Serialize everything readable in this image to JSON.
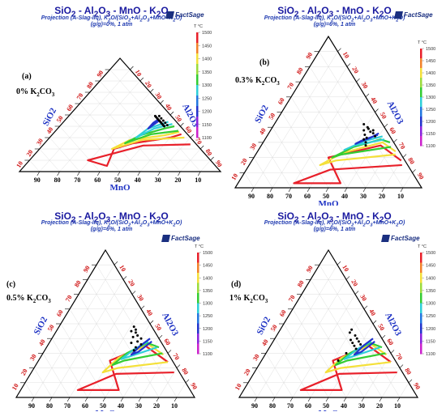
{
  "figure": {
    "panels": [
      {
        "title": "SiO2 - Al2O3 - MnO - K2O",
        "subtitle1": "Projection (A-Slag-liq), K2O/(SiO2+Al2O3+MnO+K2O)",
        "subtitle2": "(g/g)=0%, 1 atm",
        "logo": "FactSage",
        "panel_label": "(a)",
        "composition": "0% K2CO3"
      },
      {
        "title": "SiO2 - Al2O3 - MnO - K2O",
        "subtitle1": "Projection (A-Slag-liq), K2O/(SiO2+Al2O3+MnO+K2O)",
        "subtitle2": "(g/g)=6%, 1 atm",
        "logo": "FactSage",
        "panel_label": "(b)",
        "composition": "0.3% K2CO3"
      },
      {
        "title": "SiO2 - Al2O3 - MnO - K2O",
        "subtitle1": "Projection (A-Slag-liq), K2O/(SiO2+Al2O3+MnO+K2O)",
        "subtitle2": "(g/g)=6%, 1 atm",
        "logo": "FactSage",
        "panel_label": "(c)",
        "composition": "0.5% K2CO3"
      },
      {
        "title": "SiO2 - Al2O3 - MnO - K2O",
        "subtitle1": "Projection (A-Slag-liq), K2O/(SiO2+Al2O3+MnO+K2O)",
        "subtitle2": "(g/g)=6%, 1 atm",
        "logo": "FactSage",
        "panel_label": "(d)",
        "composition": "1% K2CO3"
      }
    ]
  },
  "chart_data": [
    {
      "type": "scatter",
      "diagram": "ternary",
      "axis_labels": {
        "left": "SiO2",
        "right": "Al2O3",
        "bottom": "MnO"
      },
      "ticks_bottom": [
        "90",
        "80",
        "70",
        "60",
        "50",
        "40",
        "30",
        "20",
        "10"
      ],
      "ticks_left": [
        "10",
        "20",
        "30",
        "40",
        "50",
        "60",
        "70",
        "80",
        "90"
      ],
      "ticks_right": [
        "10",
        "20",
        "30",
        "40",
        "50",
        "60",
        "70",
        "80",
        "90"
      ],
      "legend": {
        "unit": "T °C",
        "values": [
          "1500",
          "1450",
          "1400",
          "1350",
          "1300",
          "1250",
          "1200",
          "1150",
          "1100"
        ]
      },
      "isotherms": [
        {
          "T": 1500,
          "color": "#e8202a",
          "points": [
            [
              24,
              73,
              3
            ],
            [
              23,
              50,
              27
            ],
            [
              10,
              29,
              61
            ],
            [
              5,
              41,
              54
            ],
            [
              20,
              37,
              43
            ],
            [
              25,
              44,
              31
            ],
            [
              30,
              60,
              10
            ],
            [
              33,
              64,
              3
            ]
          ]
        },
        {
          "T": 1400,
          "color": "#f4e03a",
          "points": [
            [
              30,
              67,
              3
            ],
            [
              28,
              47,
              25
            ],
            [
              20,
              36,
              44
            ],
            [
              28,
              41,
              31
            ],
            [
              32,
              56,
              12
            ],
            [
              35,
              62,
              3
            ]
          ]
        },
        {
          "T": 1300,
          "color": "#33cc33",
          "points": [
            [
              36,
              61,
              3
            ],
            [
              33,
              49,
              18
            ],
            [
              25,
              40,
              35
            ],
            [
              32,
              44,
              24
            ],
            [
              38,
              53,
              9
            ],
            [
              40,
              57,
              3
            ]
          ]
        },
        {
          "T": 1200,
          "color": "#2ecfd8",
          "points": [
            [
              42,
              55,
              3
            ],
            [
              38,
              48,
              14
            ],
            [
              30,
              43,
              27
            ],
            [
              38,
              45,
              17
            ],
            [
              44,
              52,
              4
            ]
          ]
        },
        {
          "T": 1100,
          "color": "#2233cc",
          "points": [
            [
              45,
              47,
              8
            ],
            [
              38,
              45,
              17
            ],
            [
              43,
              45,
              12
            ],
            [
              46,
              46,
              8
            ]
          ]
        }
      ],
      "samples": [
        [
          40,
          52,
          8
        ],
        [
          41,
          51,
          8
        ],
        [
          42,
          50,
          8
        ],
        [
          43,
          49,
          8
        ],
        [
          44,
          48,
          8
        ],
        [
          45,
          47,
          8
        ],
        [
          46,
          46,
          8
        ],
        [
          47,
          45,
          8
        ],
        [
          48,
          44,
          8
        ],
        [
          49,
          43,
          8
        ],
        [
          41,
          53,
          6
        ],
        [
          43,
          51,
          6
        ],
        [
          45,
          49,
          6
        ],
        [
          47,
          47,
          6
        ],
        [
          49,
          45,
          6
        ]
      ]
    },
    {
      "type": "scatter",
      "diagram": "ternary",
      "axis_labels": {
        "left": "SiO2",
        "right": "Al2O3",
        "bottom": "MnO"
      },
      "ticks_bottom": [
        "90",
        "80",
        "70",
        "60",
        "50",
        "40",
        "30",
        "20",
        "10"
      ],
      "ticks_left": [
        "10",
        "20",
        "30",
        "40",
        "50",
        "60",
        "70",
        "80",
        "90"
      ],
      "ticks_right": [
        "10",
        "20",
        "30",
        "40",
        "50",
        "60",
        "70",
        "80",
        "90"
      ],
      "legend": {
        "unit": "T °C",
        "values": [
          "1500",
          "1450",
          "1400",
          "1350",
          "1300",
          "1250",
          "1200",
          "1150",
          "1100"
        ]
      },
      "isotherms": [
        {
          "T": 1500,
          "color": "#e8202a",
          "points": [
            [
              15,
              82,
              3
            ],
            [
              12,
              45,
              43
            ],
            [
              3,
              30,
              67
            ],
            [
              3,
              55,
              42
            ],
            [
              20,
              40,
              40
            ],
            [
              28,
              64,
              8
            ],
            [
              18,
              80,
              2
            ]
          ]
        },
        {
          "T": 1400,
          "color": "#f4e03a",
          "points": [
            [
              22,
              75,
              3
            ],
            [
              18,
              45,
              37
            ],
            [
              15,
              38,
              47
            ],
            [
              23,
              46,
              31
            ],
            [
              30,
              64,
              6
            ],
            [
              24,
              74,
              2
            ]
          ]
        },
        {
          "T": 1300,
          "color": "#33cc33",
          "points": [
            [
              27,
              70,
              3
            ],
            [
              22,
              46,
              32
            ],
            [
              20,
              42,
              38
            ],
            [
              27,
              50,
              23
            ],
            [
              32,
              62,
              6
            ],
            [
              30,
              68,
              2
            ]
          ]
        },
        {
          "T": 1200,
          "color": "#2ecfd8",
          "points": [
            [
              32,
              64,
              4
            ],
            [
              28,
              50,
              22
            ],
            [
              25,
              46,
              29
            ],
            [
              31,
              54,
              15
            ],
            [
              34,
              62,
              4
            ]
          ]
        },
        {
          "T": 1100,
          "color": "#2233cc",
          "points": [
            [
              35,
              59,
              6
            ],
            [
              31,
              52,
              17
            ],
            [
              29,
              50,
              21
            ],
            [
              33,
              56,
              11
            ],
            [
              36,
              59,
              5
            ]
          ]
        }
      ],
      "samples": [
        [
          36,
          56,
          8
        ],
        [
          38,
          55,
          7
        ],
        [
          37,
          54,
          9
        ],
        [
          39,
          52,
          9
        ],
        [
          40,
          51,
          9
        ],
        [
          34,
          58,
          8
        ],
        [
          30,
          55,
          15
        ],
        [
          32,
          53,
          15
        ],
        [
          33,
          54,
          13
        ],
        [
          35,
          52,
          13
        ],
        [
          28,
          56,
          16
        ],
        [
          38,
          50,
          12
        ],
        [
          42,
          48,
          10
        ]
      ]
    },
    {
      "type": "scatter",
      "diagram": "ternary",
      "axis_labels": {
        "left": "SiO2",
        "right": "Al2O3",
        "bottom": "MnO"
      },
      "ticks_bottom": [
        "90",
        "80",
        "70",
        "60",
        "50",
        "40",
        "30",
        "20",
        "10"
      ],
      "ticks_left": [
        "10",
        "20",
        "30",
        "40",
        "50",
        "60",
        "70",
        "80",
        "90"
      ],
      "ticks_right": [
        "10",
        "20",
        "30",
        "40",
        "50",
        "60",
        "70",
        "80",
        "90"
      ],
      "legend": {
        "unit": "T °C",
        "values": [
          "1500",
          "1450",
          "1400",
          "1350",
          "1300",
          "1250",
          "1200",
          "1150",
          "1100"
        ]
      },
      "isotherms": [
        {
          "T": 1500,
          "color": "#e8202a",
          "points": [
            [
              17,
              80,
              3
            ],
            [
              16,
              48,
              36
            ],
            [
              5,
              32,
              63
            ],
            [
              5,
              55,
              40
            ],
            [
              25,
              40,
              35
            ],
            [
              35,
              55,
              10
            ],
            [
              24,
              73,
              3
            ]
          ]
        },
        {
          "T": 1400,
          "color": "#f4e03a",
          "points": [
            [
              24,
              73,
              3
            ],
            [
              20,
              47,
              33
            ],
            [
              17,
              40,
              43
            ],
            [
              27,
              44,
              29
            ],
            [
              36,
              56,
              8
            ],
            [
              29,
              68,
              3
            ]
          ]
        },
        {
          "T": 1300,
          "color": "#33cc33",
          "points": [
            [
              30,
              67,
              3
            ],
            [
              25,
              48,
              27
            ],
            [
              22,
              43,
              35
            ],
            [
              30,
              47,
              23
            ],
            [
              37,
              55,
              8
            ],
            [
              34,
              63,
              3
            ]
          ]
        },
        {
          "T": 1200,
          "color": "#2ecfd8",
          "points": [
            [
              34,
              62,
              4
            ],
            [
              28,
              50,
              22
            ],
            [
              26,
              46,
              28
            ],
            [
              33,
              50,
              17
            ],
            [
              38,
              55,
              7
            ]
          ]
        },
        {
          "T": 1100,
          "color": "#2233cc",
          "points": [
            [
              38,
              57,
              5
            ],
            [
              31,
              53,
              16
            ],
            [
              29,
              50,
              21
            ],
            [
              35,
              52,
              13
            ],
            [
              40,
              55,
              5
            ]
          ]
        }
      ],
      "samples": [
        [
          40,
          50,
          10
        ],
        [
          42,
          47,
          11
        ],
        [
          38,
          49,
          13
        ],
        [
          44,
          45,
          11
        ],
        [
          46,
          44,
          10
        ],
        [
          36,
          52,
          12
        ],
        [
          34,
          50,
          16
        ],
        [
          32,
          50,
          18
        ],
        [
          41,
          45,
          14
        ],
        [
          48,
          42,
          10
        ],
        [
          37,
          46,
          17
        ],
        [
          45,
          42,
          13
        ]
      ]
    },
    {
      "type": "scatter",
      "diagram": "ternary",
      "axis_labels": {
        "left": "SiO2",
        "right": "Al2O3",
        "bottom": "MnO"
      },
      "ticks_bottom": [
        "90",
        "80",
        "70",
        "60",
        "50",
        "40",
        "30",
        "20",
        "10"
      ],
      "ticks_left": [
        "10",
        "20",
        "30",
        "40",
        "50",
        "60",
        "70",
        "80",
        "90"
      ],
      "ticks_right": [
        "10",
        "20",
        "30",
        "40",
        "50",
        "60",
        "70",
        "80",
        "90"
      ],
      "legend": {
        "unit": "T °C",
        "values": [
          "1500",
          "1450",
          "1400",
          "1350",
          "1300",
          "1250",
          "1200",
          "1150",
          "1100"
        ]
      },
      "isotherms": [
        {
          "T": 1500,
          "color": "#e8202a",
          "points": [
            [
              17,
              80,
              3
            ],
            [
              16,
              48,
              36
            ],
            [
              5,
              32,
              63
            ],
            [
              5,
              55,
              40
            ],
            [
              25,
              40,
              35
            ],
            [
              35,
              55,
              10
            ],
            [
              24,
              73,
              3
            ]
          ]
        },
        {
          "T": 1400,
          "color": "#f4e03a",
          "points": [
            [
              24,
              73,
              3
            ],
            [
              20,
              47,
              33
            ],
            [
              17,
              40,
              43
            ],
            [
              27,
              44,
              29
            ],
            [
              36,
              56,
              8
            ],
            [
              29,
              68,
              3
            ]
          ]
        },
        {
          "T": 1300,
          "color": "#33cc33",
          "points": [
            [
              30,
              67,
              3
            ],
            [
              25,
              48,
              27
            ],
            [
              22,
              43,
              35
            ],
            [
              30,
              47,
              23
            ],
            [
              37,
              55,
              8
            ],
            [
              34,
              63,
              3
            ]
          ]
        },
        {
          "T": 1200,
          "color": "#2ecfd8",
          "points": [
            [
              34,
              62,
              4
            ],
            [
              28,
              50,
              22
            ],
            [
              26,
              46,
              28
            ],
            [
              33,
              50,
              17
            ],
            [
              38,
              55,
              7
            ]
          ]
        },
        {
          "T": 1100,
          "color": "#2233cc",
          "points": [
            [
              38,
              57,
              5
            ],
            [
              31,
              53,
              16
            ],
            [
              29,
              50,
              21
            ],
            [
              35,
              52,
              13
            ],
            [
              40,
              55,
              5
            ]
          ]
        }
      ],
      "samples": [
        [
          38,
          48,
          14
        ],
        [
          40,
          46,
          14
        ],
        [
          42,
          44,
          14
        ],
        [
          36,
          50,
          14
        ],
        [
          35,
          47,
          18
        ],
        [
          37,
          45,
          18
        ],
        [
          39,
          43,
          18
        ],
        [
          33,
          49,
          18
        ],
        [
          44,
          40,
          16
        ],
        [
          30,
          45,
          25
        ],
        [
          25,
          43,
          32
        ],
        [
          46,
          40,
          14
        ]
      ]
    }
  ]
}
